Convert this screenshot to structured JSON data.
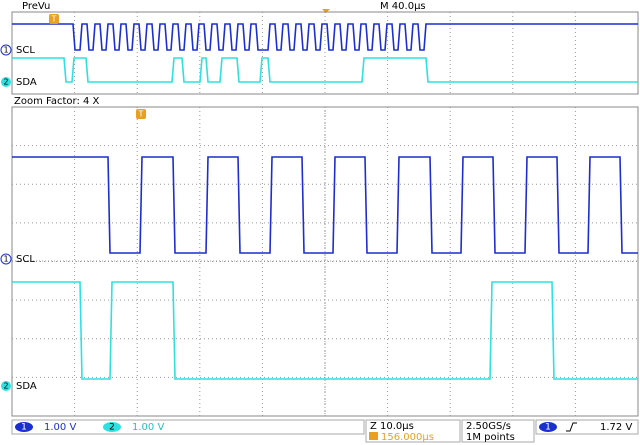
{
  "header": {
    "mode": "PreVu",
    "timebase": "M 40.0µs"
  },
  "overview": {
    "ch1_label": "SCL",
    "ch2_label": "SDA"
  },
  "zoom": {
    "factor": "Zoom Factor: 4 X",
    "ch1_label": "SCL",
    "ch2_label": "SDA"
  },
  "markers": {
    "ch1": "1",
    "ch2": "2",
    "trigger": "T"
  },
  "status": {
    "ch1": {
      "number": "1",
      "scale": "1.00 V"
    },
    "ch2": {
      "number": "2",
      "scale": "1.00 V"
    },
    "zoom_scale": "Z 10.0µs",
    "trigger_position": "156.000µs",
    "sample_rate": "2.50GS/s",
    "record_length": "1M points",
    "trigger": {
      "source": "1",
      "level": "1.72 V"
    }
  }
}
